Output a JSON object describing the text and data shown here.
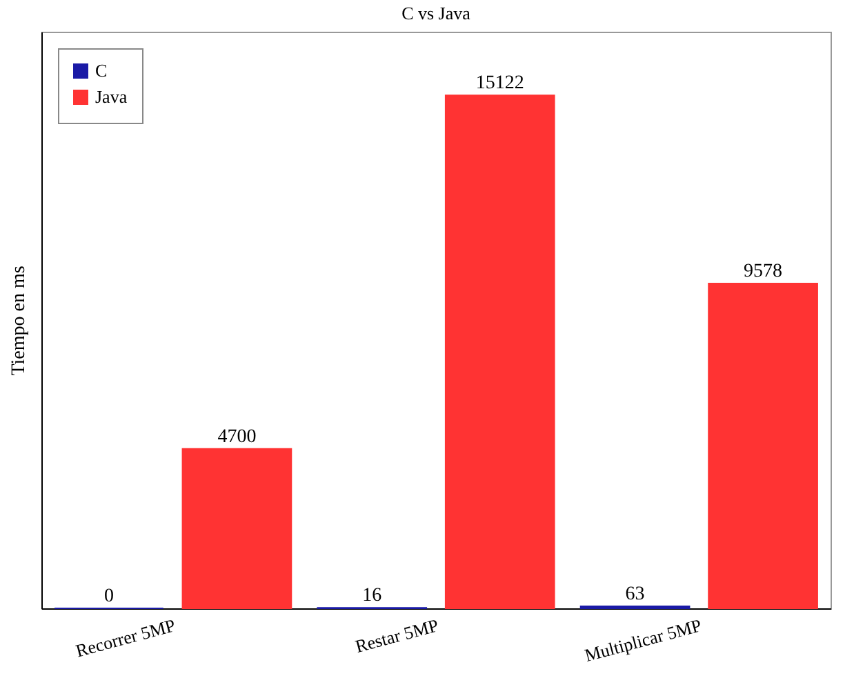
{
  "chart_data": {
    "type": "bar",
    "title": "C vs Java",
    "ylabel": "Tiempo en ms",
    "categories": [
      "Recorrer 5MP",
      "Restar 5MP",
      "Multiplicar 5MP"
    ],
    "series": [
      {
        "name": "C",
        "color": "#1a1aa6",
        "values": [
          0,
          16,
          63
        ]
      },
      {
        "name": "Java",
        "color": "#ff3333",
        "values": [
          4700,
          15122,
          9578
        ]
      }
    ],
    "ylim": [
      0,
      17000
    ],
    "data_labels": true,
    "legend": "top left",
    "grid": false,
    "tick_labels": "x"
  }
}
